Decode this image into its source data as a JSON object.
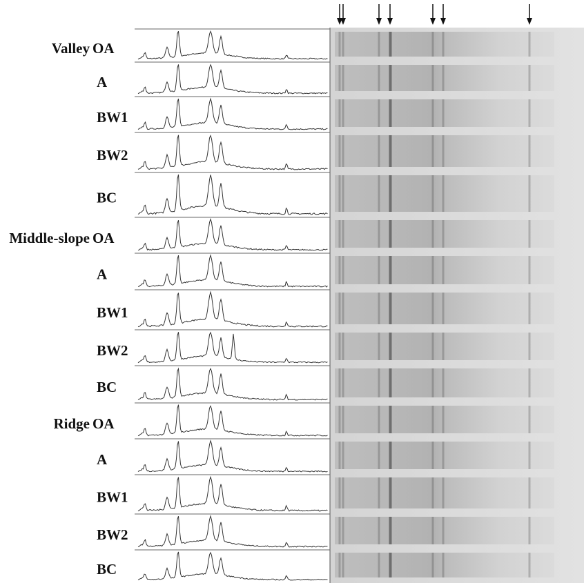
{
  "groups": [
    {
      "label": "Valley",
      "lanes": [
        "OA",
        "A",
        "BW1",
        "BW2",
        "BC"
      ]
    },
    {
      "label": "Middle-slope",
      "lanes": [
        "OA",
        "A",
        "BW1",
        "BW2",
        "BC"
      ]
    },
    {
      "label": "Ridge",
      "lanes": [
        "OA",
        "A",
        "BW1",
        "BW2",
        "BC"
      ]
    }
  ]
}
